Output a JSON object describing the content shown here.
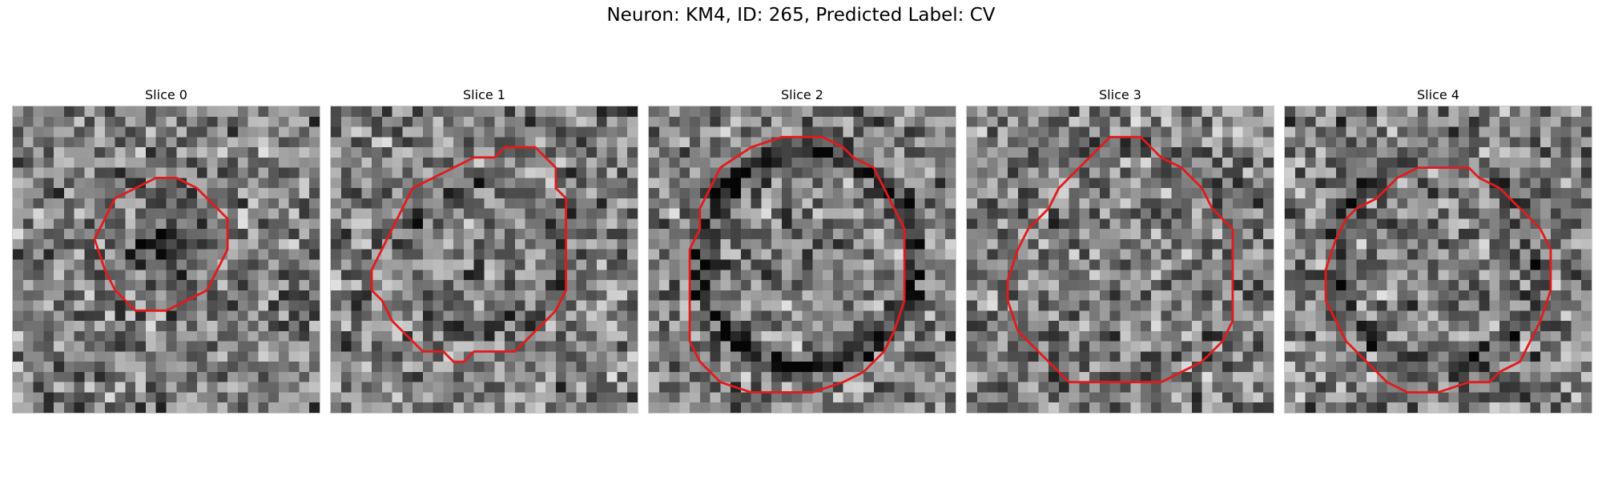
{
  "figure": {
    "suptitle": "Neuron: KM4, ID: 265, Predicted Label: CV"
  },
  "panels": [
    {
      "title": "Slice 0",
      "contour_color": "#e31a1c",
      "contour_shape": "small-octagon"
    },
    {
      "title": "Slice 1",
      "contour_color": "#e31a1c",
      "contour_shape": "octagon"
    },
    {
      "title": "Slice 2",
      "contour_color": "#e31a1c",
      "contour_shape": "octagon"
    },
    {
      "title": "Slice 3",
      "contour_color": "#e31a1c",
      "contour_shape": "octagon"
    },
    {
      "title": "Slice 4",
      "contour_color": "#e31a1c",
      "contour_shape": "octagon"
    }
  ],
  "colormap": "gray"
}
